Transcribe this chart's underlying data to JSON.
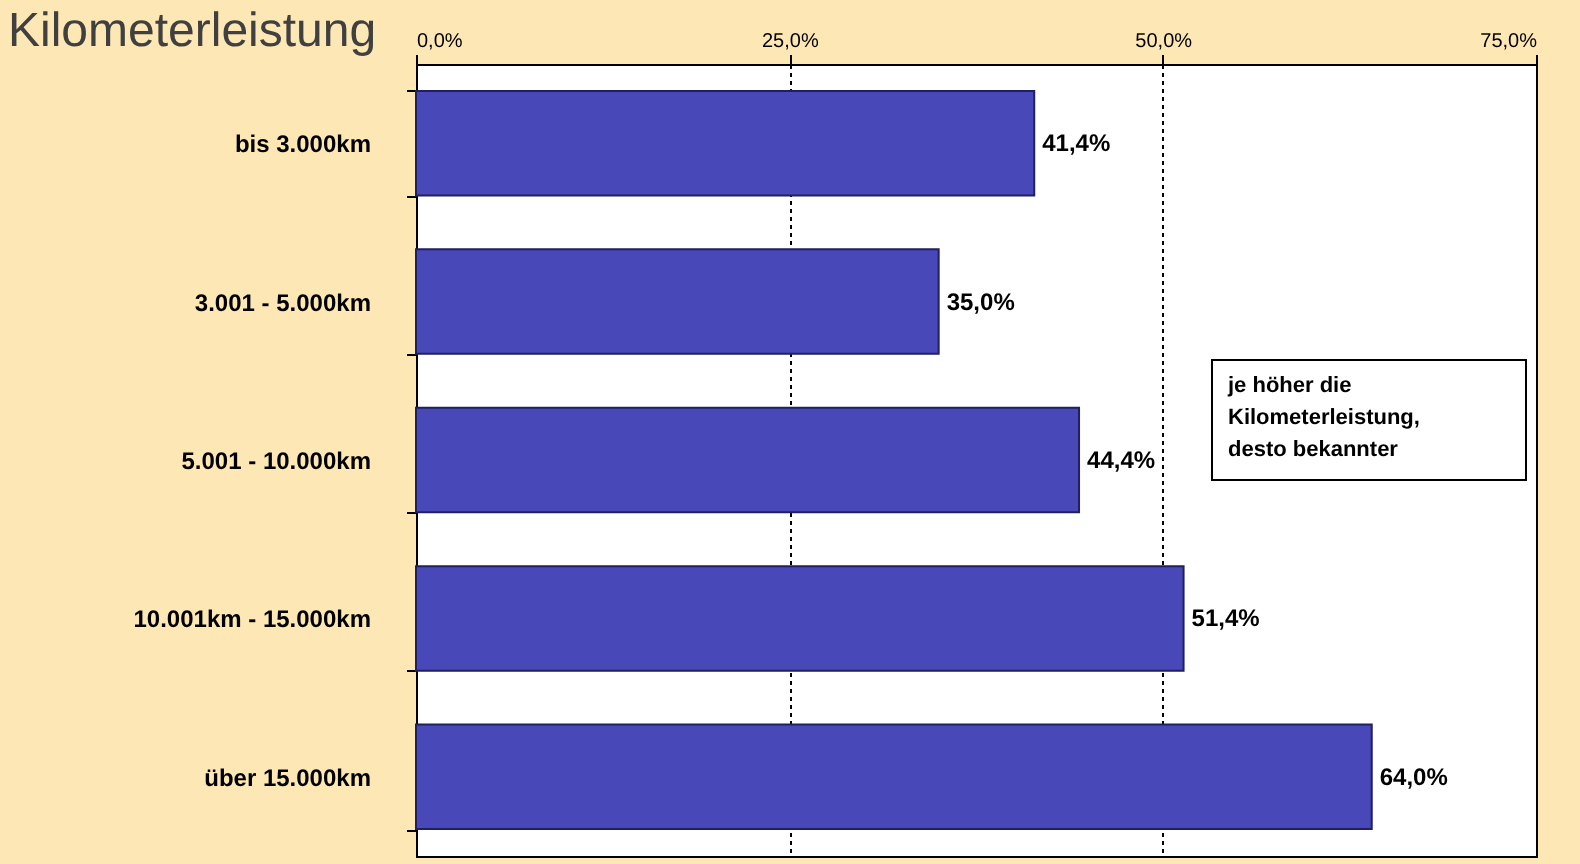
{
  "chart_data": {
    "type": "bar",
    "orientation": "horizontal",
    "title": "Kilometerleistung",
    "categories": [
      "bis 3.000km",
      "3.001 - 5.000km",
      "5.001 - 10.000km",
      "10.001km - 15.000km",
      "über 15.000km"
    ],
    "values": [
      41.4,
      35.0,
      44.4,
      51.4,
      64.0
    ],
    "value_labels": [
      "41,4%",
      "35,0%",
      "44,4%",
      "51,4%",
      "64,0%"
    ],
    "color": "#4848b8",
    "xlim": [
      0,
      75
    ],
    "xticks": [
      {
        "value": 0,
        "label": "0,0%"
      },
      {
        "value": 25,
        "label": "25,0%"
      },
      {
        "value": 50,
        "label": "50,0%"
      },
      {
        "value": 75,
        "label": "75,0%"
      }
    ],
    "grid": "x",
    "annotations": [
      "je höher die\nKilometerleistung,\ndesto bekannter"
    ]
  }
}
